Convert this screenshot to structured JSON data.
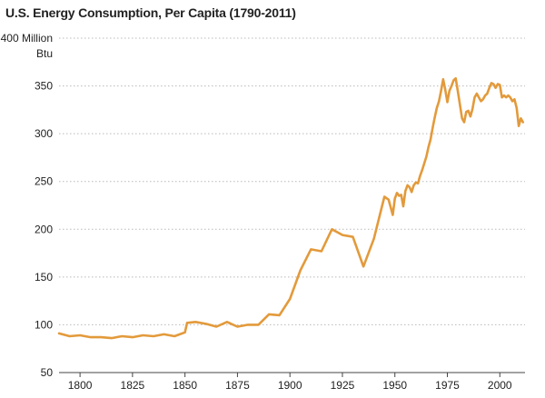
{
  "chart_data": {
    "type": "line",
    "title": "U.S. Energy Consumption, Per Capita (1790-2011)",
    "y_unit_line1": "400 Million",
    "y_unit_line2": "Btu",
    "xlim": [
      1790,
      2012
    ],
    "ylim": [
      50,
      400
    ],
    "x_ticks": [
      1800,
      1825,
      1850,
      1875,
      1900,
      1925,
      1950,
      1975,
      2000
    ],
    "y_ticks": [
      50,
      100,
      150,
      200,
      250,
      300,
      350
    ],
    "grid": "horizontal dotted",
    "line_color": "#E39A3B",
    "series": [
      {
        "x": [
          1790,
          1795,
          1800,
          1805,
          1810,
          1815,
          1820,
          1825,
          1830,
          1835,
          1840,
          1845,
          1850,
          1851,
          1855,
          1860,
          1865,
          1870,
          1875,
          1880,
          1885,
          1890,
          1895,
          1900,
          1905,
          1910,
          1915,
          1920,
          1925,
          1930,
          1935,
          1940,
          1945,
          1947,
          1949,
          1950,
          1951,
          1952,
          1953,
          1954,
          1955,
          1956,
          1957,
          1958,
          1959,
          1960,
          1961,
          1962,
          1963,
          1964,
          1965,
          1966,
          1967,
          1968,
          1969,
          1970,
          1971,
          1972,
          1973,
          1974,
          1975,
          1976,
          1977,
          1978,
          1979,
          1980,
          1981,
          1982,
          1983,
          1984,
          1985,
          1986,
          1987,
          1988,
          1989,
          1990,
          1991,
          1992,
          1993,
          1994,
          1995,
          1996,
          1997,
          1998,
          1999,
          2000,
          2001,
          2002,
          2003,
          2004,
          2005,
          2006,
          2007,
          2008,
          2009,
          2010,
          2011
        ],
        "values": [
          91,
          88,
          89,
          87,
          87,
          86,
          88,
          87,
          89,
          88,
          90,
          88,
          92,
          102,
          103,
          101,
          98,
          103,
          98,
          100,
          100,
          111,
          110,
          127,
          157,
          179,
          177,
          200,
          194,
          192,
          161,
          190,
          234,
          231,
          215,
          232,
          238,
          235,
          236,
          224,
          240,
          246,
          244,
          239,
          246,
          249,
          248,
          256,
          262,
          269,
          276,
          286,
          294,
          306,
          317,
          327,
          334,
          345,
          357,
          346,
          333,
          345,
          350,
          356,
          358,
          344,
          330,
          316,
          312,
          323,
          324,
          318,
          326,
          338,
          342,
          338,
          334,
          336,
          340,
          342,
          348,
          353,
          352,
          348,
          352,
          351,
          338,
          340,
          338,
          340,
          338,
          334,
          336,
          327,
          308,
          316,
          312
        ]
      }
    ]
  }
}
